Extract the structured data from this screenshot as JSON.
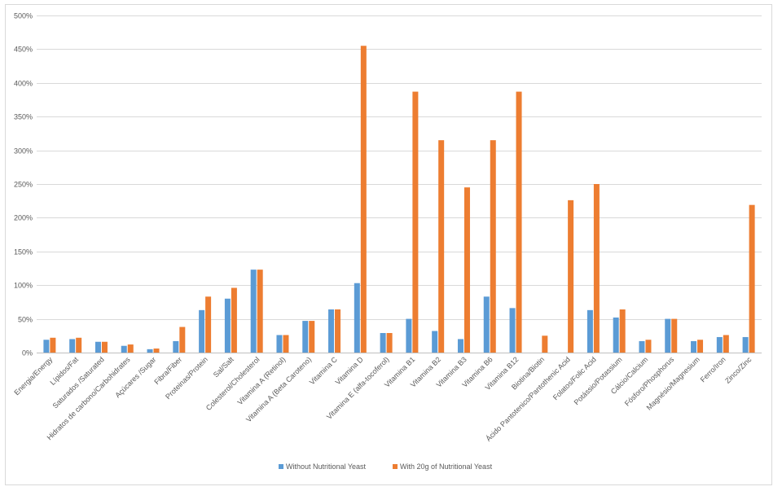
{
  "chart_data": {
    "type": "bar",
    "title": "",
    "xlabel": "",
    "ylabel": "",
    "ylim": [
      0,
      5
    ],
    "y_ticks": [
      0,
      0.5,
      1,
      1.5,
      2,
      2.5,
      3,
      3.5,
      4,
      4.5,
      5
    ],
    "y_tick_labels": [
      "0%",
      "50%",
      "100%",
      "150%",
      "200%",
      "250%",
      "300%",
      "350%",
      "400%",
      "450%",
      "500%"
    ],
    "grid": true,
    "legend_position": "bottom",
    "categories": [
      "Energia/Energy",
      "Lípidos/Fat",
      "Saturados /Saturated",
      "Hidratos de carbono/Carbohidrates",
      "Açúcares /Sugar",
      "Fibra/Fiber",
      "Proteinas/Protein",
      "Sal/Salt",
      "Colesterol/Cholesterol",
      "Vitamina A (Retinol)",
      "Vitamina A (Beta Caroteno)",
      "Vitamina C",
      "Vitamina D",
      "Vitamina E (alfa-tocoferol)",
      "Vitamina B1",
      "Vitamina B2",
      "Vitamina B3",
      "Vitamina B6",
      "Vitamina B12",
      "Biotina/Biotin",
      "Ácido Pantotenico/Pantothenic Acid",
      "Folatos/Folic Acid",
      "Potássio/Potassium",
      "Cálcio/Calcium",
      "Fósforo/Phosphorus",
      "Magnésio/Magnesium",
      "Ferro/Iron",
      "Zinco/Zinc"
    ],
    "series": [
      {
        "name": "Without Nutritional Yeast",
        "color": "#5b9bd5",
        "values": [
          0.19,
          0.2,
          0.16,
          0.1,
          0.05,
          0.17,
          0.63,
          0.8,
          1.23,
          0.26,
          0.47,
          0.64,
          1.03,
          0.29,
          0.5,
          0.32,
          0.2,
          0.83,
          0.66,
          0.0,
          0.0,
          0.63,
          0.52,
          0.17,
          0.5,
          0.17,
          0.23,
          0.23
        ]
      },
      {
        "name": "With 20g of Nutritional Yeast",
        "color": "#ed7d31",
        "values": [
          0.22,
          0.22,
          0.16,
          0.12,
          0.06,
          0.38,
          0.83,
          0.96,
          1.23,
          0.26,
          0.47,
          0.64,
          4.55,
          0.29,
          3.87,
          3.15,
          2.45,
          3.15,
          3.87,
          0.25,
          2.26,
          2.5,
          0.64,
          0.19,
          0.5,
          0.19,
          0.26,
          2.19
        ]
      }
    ]
  }
}
